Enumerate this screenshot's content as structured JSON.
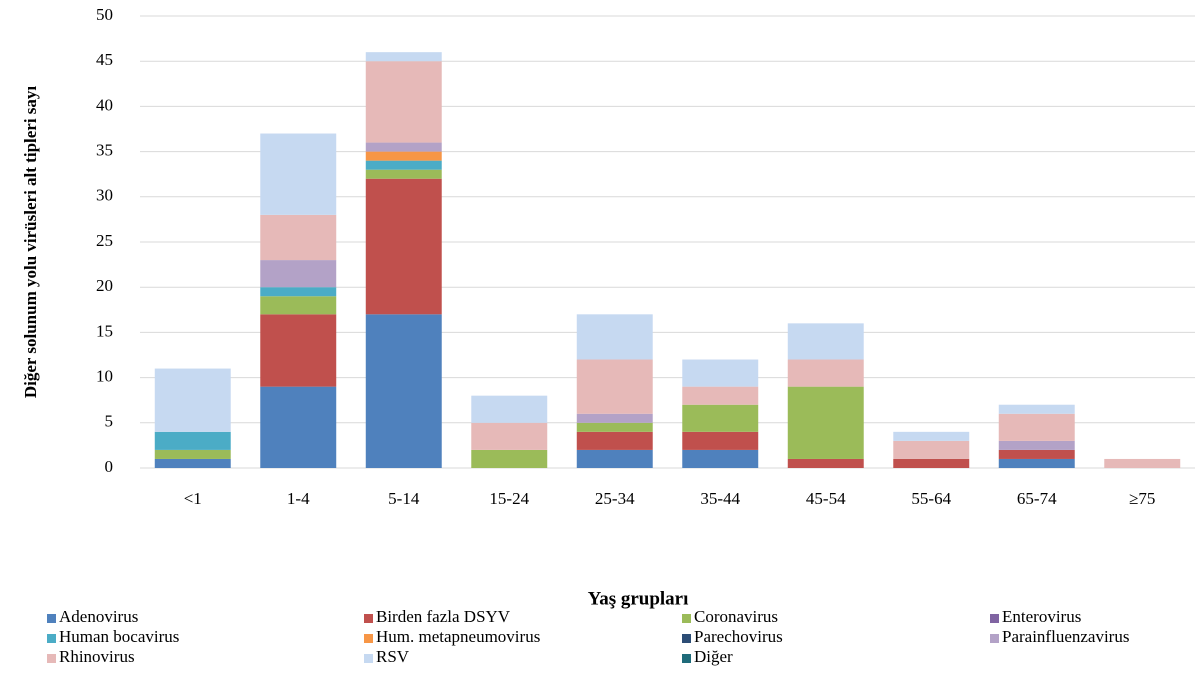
{
  "chart_data": {
    "type": "stacked_bar",
    "y_label": "Diğer solunum yolu virüsleri alt tipleri sayı",
    "x_label": "Yaş grupları",
    "categories": [
      "<1",
      "1-4",
      "5-14",
      "15-24",
      "25-34",
      "35-44",
      "45-54",
      "55-64",
      "65-74",
      "≥75"
    ],
    "series": [
      {
        "name": "Adenovirus",
        "color": "#4f81bd",
        "values": [
          1,
          9,
          17,
          0,
          2,
          2,
          0,
          0,
          1,
          0
        ]
      },
      {
        "name": "Birden fazla DSYV",
        "color": "#c0504d",
        "values": [
          0,
          8,
          15,
          0,
          2,
          2,
          1,
          1,
          1,
          0
        ]
      },
      {
        "name": "Coronavirus",
        "color": "#9bbb59",
        "values": [
          1,
          2,
          1,
          2,
          1,
          3,
          8,
          0,
          0,
          0
        ]
      },
      {
        "name": "Enterovirus",
        "color": "#8064a2",
        "values": [
          0,
          0,
          0,
          0,
          0,
          0,
          0,
          0,
          0,
          0
        ]
      },
      {
        "name": "Human bocavirus",
        "color": "#4bacc6",
        "values": [
          2,
          1,
          1,
          0,
          0,
          0,
          0,
          0,
          0,
          0
        ]
      },
      {
        "name": "Hum. metapneumovirus",
        "color": "#f79646",
        "values": [
          0,
          0,
          1,
          0,
          0,
          0,
          0,
          0,
          0,
          0
        ]
      },
      {
        "name": "Parechovirus",
        "color": "#2c4d75",
        "values": [
          0,
          0,
          0,
          0,
          0,
          0,
          0,
          0,
          0,
          0
        ]
      },
      {
        "name": "Parainfluenzavirus",
        "color": "#b3a2c7",
        "values": [
          0,
          3,
          1,
          0,
          1,
          0,
          0,
          0,
          1,
          0
        ]
      },
      {
        "name": "Rhinovirus",
        "color": "#e6b9b8",
        "values": [
          0,
          5,
          9,
          3,
          6,
          2,
          3,
          2,
          3,
          1
        ]
      },
      {
        "name": "RSV",
        "color": "#c6d9f1",
        "values": [
          7,
          9,
          1,
          3,
          5,
          3,
          4,
          1,
          1,
          0
        ]
      },
      {
        "name": "Diğer",
        "color": "#1f6b7a",
        "values": [
          0,
          0,
          0,
          0,
          0,
          0,
          0,
          0,
          0,
          0
        ]
      }
    ],
    "ylim": [
      0,
      50
    ],
    "yticks": [
      0,
      5,
      10,
      15,
      20,
      25,
      30,
      35,
      40,
      45,
      50
    ],
    "grid": true
  }
}
